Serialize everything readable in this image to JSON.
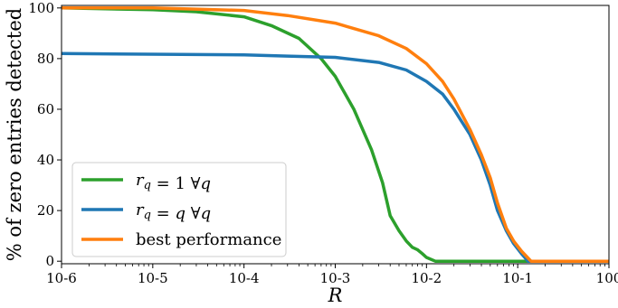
{
  "chart_data": {
    "type": "line",
    "xlabel": "R",
    "ylabel": "% of zero entries detected",
    "xscale": "log",
    "xlim": [
      1e-06,
      1
    ],
    "ylim": [
      -1,
      101
    ],
    "grid": false,
    "legend_position": "bottom-left",
    "x_ticks": [
      {
        "value": 1e-06,
        "label": "10-6"
      },
      {
        "value": 1e-05,
        "label": "10-5"
      },
      {
        "value": 0.0001,
        "label": "10-4"
      },
      {
        "value": 0.001,
        "label": "10-3"
      },
      {
        "value": 0.01,
        "label": "10-2"
      },
      {
        "value": 0.1,
        "label": "10-1"
      },
      {
        "value": 1,
        "label": "100"
      }
    ],
    "y_ticks": [
      0,
      20,
      40,
      60,
      80,
      100
    ],
    "series": [
      {
        "name": "r_q = 1 ∀q",
        "color": "#2ca02c",
        "points": [
          [
            1e-06,
            100
          ],
          [
            1e-05,
            99.3
          ],
          [
            3e-05,
            98.5
          ],
          [
            0.0001,
            96.5
          ],
          [
            0.0002,
            93
          ],
          [
            0.0004,
            88
          ],
          [
            0.0007,
            80
          ],
          [
            0.001,
            73
          ],
          [
            0.0016,
            60
          ],
          [
            0.0025,
            44
          ],
          [
            0.0033,
            31
          ],
          [
            0.004,
            18
          ],
          [
            0.005,
            12
          ],
          [
            0.006,
            8
          ],
          [
            0.007,
            5.5
          ],
          [
            0.008,
            4.5
          ],
          [
            0.009,
            3
          ],
          [
            0.01,
            1.5
          ],
          [
            0.0125,
            0
          ],
          [
            1,
            0
          ]
        ]
      },
      {
        "name": "r_q = q ∀q",
        "color": "#1f77b4",
        "points": [
          [
            1e-06,
            82
          ],
          [
            0.0001,
            81.5
          ],
          [
            0.0003,
            81
          ],
          [
            0.001,
            80.5
          ],
          [
            0.003,
            78.5
          ],
          [
            0.006,
            75.5
          ],
          [
            0.01,
            71
          ],
          [
            0.015,
            66
          ],
          [
            0.02,
            60
          ],
          [
            0.03,
            50
          ],
          [
            0.04,
            40
          ],
          [
            0.05,
            30
          ],
          [
            0.06,
            20
          ],
          [
            0.075,
            12
          ],
          [
            0.09,
            7
          ],
          [
            0.11,
            3
          ],
          [
            0.13,
            0
          ],
          [
            1,
            0
          ]
        ]
      },
      {
        "name": "best performance",
        "color": "#ff7f0e",
        "points": [
          [
            1e-06,
            100
          ],
          [
            1e-05,
            100
          ],
          [
            0.0001,
            99
          ],
          [
            0.0003,
            97
          ],
          [
            0.001,
            94
          ],
          [
            0.003,
            89
          ],
          [
            0.006,
            84
          ],
          [
            0.01,
            78
          ],
          [
            0.015,
            71
          ],
          [
            0.02,
            64
          ],
          [
            0.03,
            52
          ],
          [
            0.04,
            42
          ],
          [
            0.05,
            33
          ],
          [
            0.06,
            23
          ],
          [
            0.075,
            13
          ],
          [
            0.09,
            8
          ],
          [
            0.11,
            4
          ],
          [
            0.14,
            0
          ],
          [
            1,
            0
          ]
        ]
      }
    ]
  },
  "legend": {
    "items": [
      {
        "color": "#2ca02c",
        "label_parts": [
          [
            "r",
            "math"
          ],
          [
            "q",
            "sub"
          ],
          [
            " = 1 ∀",
            "text"
          ],
          [
            "q",
            "math"
          ]
        ]
      },
      {
        "color": "#1f77b4",
        "label_parts": [
          [
            "r",
            "math"
          ],
          [
            "q",
            "sub"
          ],
          [
            " = ",
            "text"
          ],
          [
            "q",
            "math"
          ],
          [
            " ∀",
            "text"
          ],
          [
            "q",
            "math"
          ]
        ]
      },
      {
        "color": "#ff7f0e",
        "label_parts": [
          [
            "best performance",
            "text"
          ]
        ]
      }
    ]
  }
}
